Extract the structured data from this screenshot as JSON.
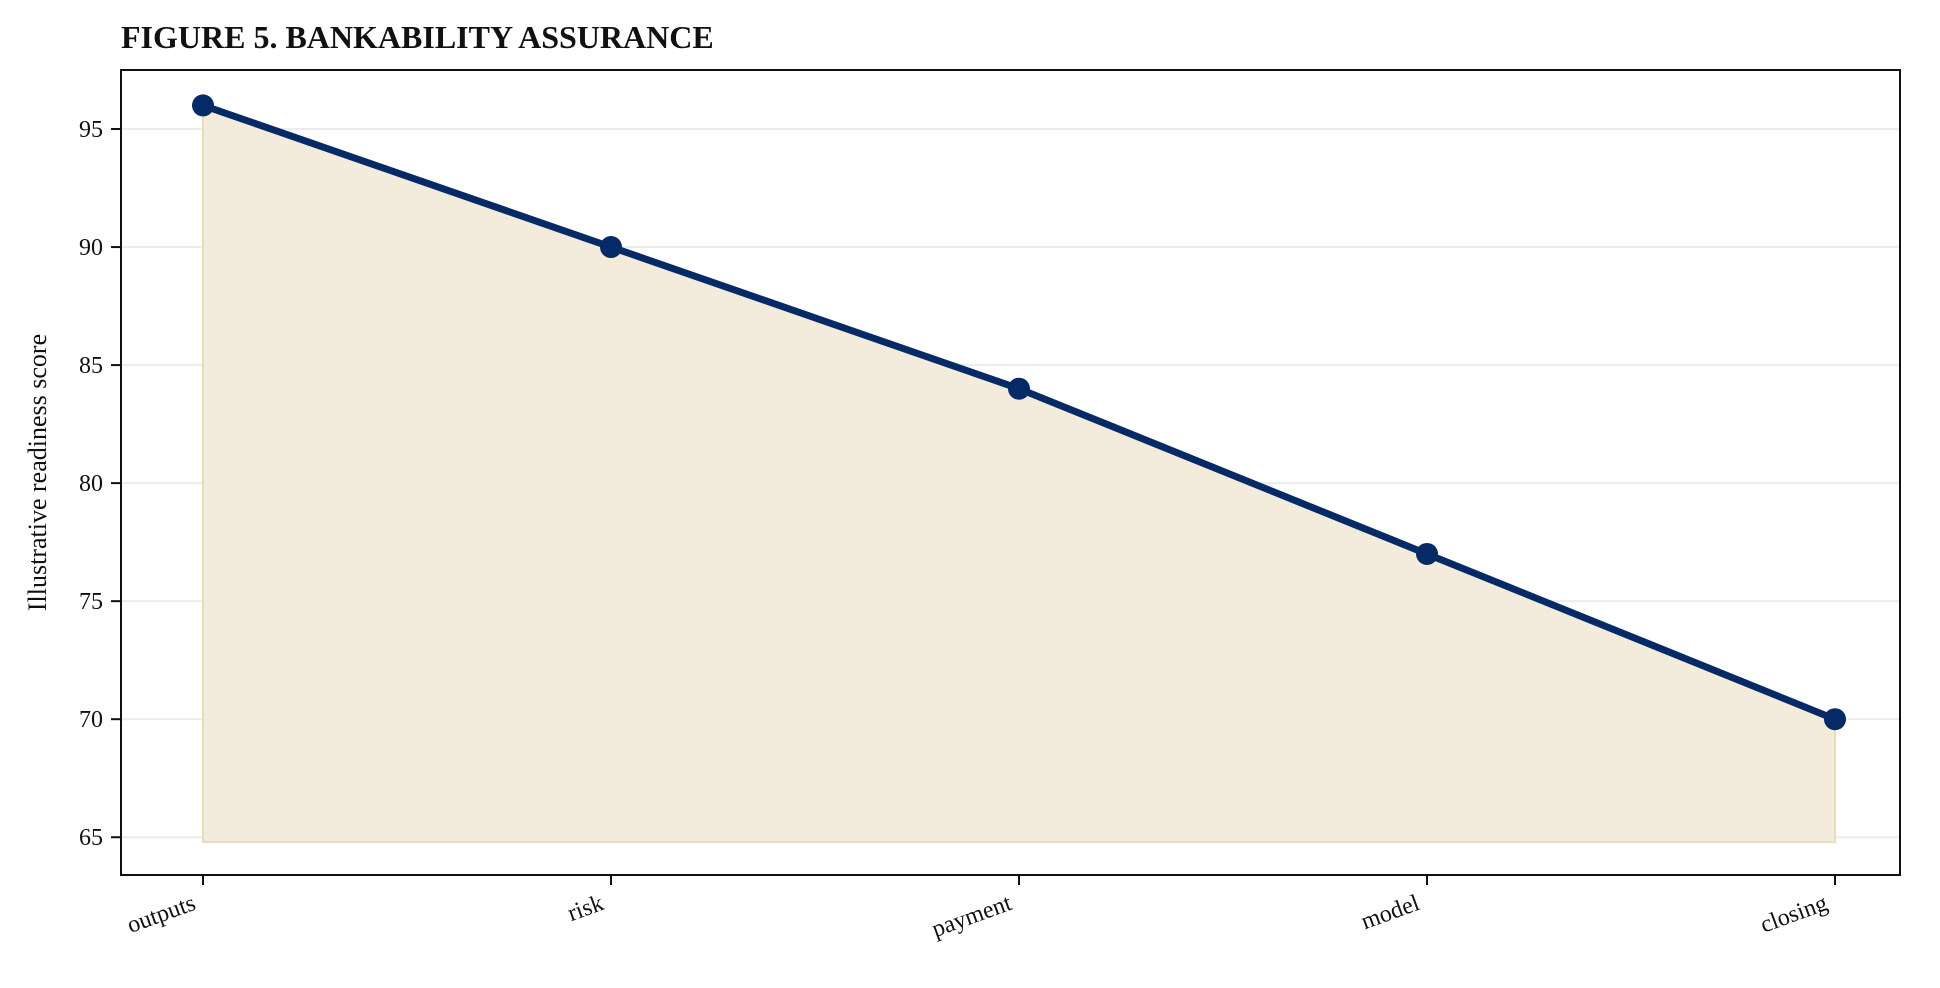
{
  "chart_data": {
    "type": "area",
    "title": "FIGURE 5. BANKABILITY ASSURANCE",
    "xlabel": "",
    "ylabel": "Illustrative readiness score",
    "categories": [
      "outputs",
      "risk",
      "payment",
      "model",
      "closing"
    ],
    "series": [
      {
        "values": [
          96,
          90,
          84,
          77,
          70
        ]
      }
    ],
    "ylim": [
      63.4,
      97.5
    ],
    "fill_baseline": 64.8,
    "yticks": [
      65,
      70,
      75,
      80,
      85,
      90,
      95
    ],
    "grid": "horizontal",
    "legend": "none",
    "colors": {
      "line": "#062a66",
      "marker": "#062a66",
      "fill": "#f3ebdb",
      "fill_edge": "#eadcb8",
      "grid": "#ececec",
      "frame": "#111111"
    }
  }
}
